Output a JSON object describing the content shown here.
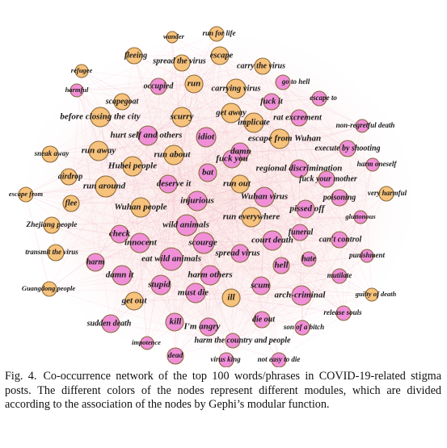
{
  "caption": {
    "label": "Fig. 4.",
    "text": "Co-occurrence network of the top 100 words/phrases in COVID-19-related stigma posts. The different colors of the nodes represent different modules, which are divided according to the association of the nodes by Gephi’s modular function."
  },
  "colors": {
    "orange_module": "#f7c27c",
    "pink_module": "#f08fd8",
    "node_stroke": "#8a6a3a",
    "edge": "#f2b3c4"
  },
  "network": {
    "nodes": [
      {
        "label": "wander",
        "module": "orange"
      },
      {
        "label": "run for life",
        "module": "orange"
      },
      {
        "label": "fleeing",
        "module": "orange"
      },
      {
        "label": "spread the virus",
        "module": "orange"
      },
      {
        "label": "escape",
        "module": "orange"
      },
      {
        "label": "carry the virus",
        "module": "orange"
      },
      {
        "label": "refugee",
        "module": "orange"
      },
      {
        "label": "occupied",
        "module": "pink"
      },
      {
        "label": "run",
        "module": "orange"
      },
      {
        "label": "carrying virus",
        "module": "orange"
      },
      {
        "label": "go to hell",
        "module": "pink"
      },
      {
        "label": "harmful",
        "module": "pink"
      },
      {
        "label": "scapegoat",
        "module": "orange"
      },
      {
        "label": "fuck it",
        "module": "pink"
      },
      {
        "label": "escape to",
        "module": "pink"
      },
      {
        "label": "before closing the city",
        "module": "orange"
      },
      {
        "label": "scurry",
        "module": "orange"
      },
      {
        "label": "get away",
        "module": "orange"
      },
      {
        "label": "rat excrement",
        "module": "pink"
      },
      {
        "label": "implicate",
        "module": "orange"
      },
      {
        "label": "non-regretful death",
        "module": "pink"
      },
      {
        "label": "hurt self and others",
        "module": "pink"
      },
      {
        "label": "idiot",
        "module": "pink"
      },
      {
        "label": "escape from Wuhan",
        "module": "orange"
      },
      {
        "label": "sneak away",
        "module": "orange"
      },
      {
        "label": "run away",
        "module": "orange"
      },
      {
        "label": "run about",
        "module": "orange"
      },
      {
        "label": "damn",
        "module": "pink"
      },
      {
        "label": "execute by shooting",
        "module": "pink"
      },
      {
        "label": "fuck you",
        "module": "pink"
      },
      {
        "label": "Hubei people",
        "module": "orange"
      },
      {
        "label": "harm oneself",
        "module": "pink"
      },
      {
        "label": "regional discrimination",
        "module": "pink"
      },
      {
        "label": "airdrop",
        "module": "orange"
      },
      {
        "label": "bat",
        "module": "pink"
      },
      {
        "label": "run out",
        "module": "orange"
      },
      {
        "label": "fuck your mother",
        "module": "pink"
      },
      {
        "label": "run around",
        "module": "orange"
      },
      {
        "label": "deserve it",
        "module": "pink"
      },
      {
        "label": "escape from",
        "module": "orange"
      },
      {
        "label": "flee",
        "module": "orange"
      },
      {
        "label": "injurious",
        "module": "pink"
      },
      {
        "label": "Wuhan virus",
        "module": "pink"
      },
      {
        "label": "poisoning",
        "module": "pink"
      },
      {
        "label": "very harmful",
        "module": "orange"
      },
      {
        "label": "Wuhan people",
        "module": "orange"
      },
      {
        "label": "pissed off",
        "module": "pink"
      },
      {
        "label": "run everywhere",
        "module": "orange"
      },
      {
        "label": "gluttonous",
        "module": "pink"
      },
      {
        "label": "Zhejiang people",
        "module": "orange"
      },
      {
        "label": "wild animals",
        "module": "pink"
      },
      {
        "label": "check",
        "module": "pink"
      },
      {
        "label": "funeral",
        "module": "pink"
      },
      {
        "label": "innocent",
        "module": "pink"
      },
      {
        "label": "scourge",
        "module": "pink"
      },
      {
        "label": "court death",
        "module": "pink"
      },
      {
        "label": "can't control",
        "module": "pink"
      },
      {
        "label": "transmit the virus",
        "module": "orange"
      },
      {
        "label": "eat wild animals",
        "module": "pink"
      },
      {
        "label": "spread virus",
        "module": "pink"
      },
      {
        "label": "hate",
        "module": "pink"
      },
      {
        "label": "punishment",
        "module": "pink"
      },
      {
        "label": "harm",
        "module": "pink"
      },
      {
        "label": "hell",
        "module": "pink"
      },
      {
        "label": "damn it",
        "module": "pink"
      },
      {
        "label": "harm others",
        "module": "pink"
      },
      {
        "label": "mutilate",
        "module": "pink"
      },
      {
        "label": "Guangdong people",
        "module": "orange"
      },
      {
        "label": "stupid",
        "module": "pink"
      },
      {
        "label": "scum",
        "module": "pink"
      },
      {
        "label": "guilty of death",
        "module": "orange"
      },
      {
        "label": "must die",
        "module": "pink"
      },
      {
        "label": "ill",
        "module": "orange"
      },
      {
        "label": "arch-criminal",
        "module": "pink"
      },
      {
        "label": "get out",
        "module": "orange"
      },
      {
        "label": "release souls",
        "module": "pink"
      },
      {
        "label": "sudden death",
        "module": "pink"
      },
      {
        "label": "die out",
        "module": "pink"
      },
      {
        "label": "kill",
        "module": "pink"
      },
      {
        "label": "I'm angry",
        "module": "pink"
      },
      {
        "label": "son of a bitch",
        "module": "pink"
      },
      {
        "label": "impotence",
        "module": "pink"
      },
      {
        "label": "harm the country and people",
        "module": "pink"
      },
      {
        "label": "dead",
        "module": "pink"
      },
      {
        "label": "virus king",
        "module": "pink"
      },
      {
        "label": "not easy to die",
        "module": "pink"
      }
    ]
  }
}
